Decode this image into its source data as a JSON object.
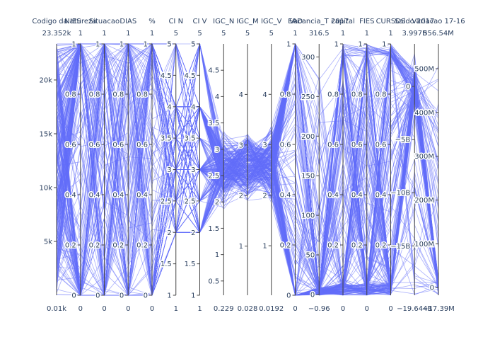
{
  "chart_data": {
    "type": "parallel_coordinates",
    "line_color": "#636efa",
    "axis_color": "#444444",
    "text_color": "#2a3f5f",
    "dimensions": [
      {
        "label": "Codigo da IES",
        "range": [
          0.01,
          23352
        ],
        "range_labels": [
          "0.01k",
          "23.352k"
        ],
        "ticks": [
          {
            "v": 5000,
            "t": "5k"
          },
          {
            "v": 10000,
            "t": "10k"
          },
          {
            "v": 15000,
            "t": "15k"
          },
          {
            "v": 20000,
            "t": "20k"
          }
        ]
      },
      {
        "label": "Natureza",
        "range": [
          0,
          1
        ],
        "range_labels": [
          "0",
          "1"
        ],
        "ticks": [
          {
            "v": 0,
            "t": "0"
          },
          {
            "v": 0.2,
            "t": "0.2"
          },
          {
            "v": 0.4,
            "t": "0.4"
          },
          {
            "v": 0.6,
            "t": "0.6"
          },
          {
            "v": 0.8,
            "t": "0.8"
          },
          {
            "v": 1,
            "t": "1"
          }
        ]
      },
      {
        "label": "Situacao",
        "range": [
          0,
          1
        ],
        "range_labels": [
          "0",
          "1"
        ],
        "ticks": [
          {
            "v": 0,
            "t": "0"
          },
          {
            "v": 0.2,
            "t": "0.2"
          },
          {
            "v": 0.4,
            "t": "0.4"
          },
          {
            "v": 0.6,
            "t": "0.6"
          },
          {
            "v": 0.8,
            "t": "0.8"
          },
          {
            "v": 1,
            "t": "1"
          }
        ]
      },
      {
        "label": "DIAS",
        "range": [
          0,
          1
        ],
        "range_labels": [
          "0",
          "1"
        ],
        "ticks": [
          {
            "v": 0,
            "t": "0"
          },
          {
            "v": 0.2,
            "t": "0.2"
          },
          {
            "v": 0.4,
            "t": "0.4"
          },
          {
            "v": 0.6,
            "t": "0.6"
          },
          {
            "v": 0.8,
            "t": "0.8"
          },
          {
            "v": 1,
            "t": "1"
          }
        ]
      },
      {
        "label": "%",
        "range": [
          0,
          1
        ],
        "range_labels": [
          "0",
          "1"
        ],
        "ticks": [
          {
            "v": 0,
            "t": "0"
          },
          {
            "v": 0.2,
            "t": "0.2"
          },
          {
            "v": 0.4,
            "t": "0.4"
          },
          {
            "v": 0.6,
            "t": "0.6"
          },
          {
            "v": 0.8,
            "t": "0.8"
          },
          {
            "v": 1,
            "t": "1"
          }
        ]
      },
      {
        "label": "CI N",
        "range": [
          1,
          5
        ],
        "range_labels": [
          "1",
          "5"
        ],
        "ticks": [
          {
            "v": 1,
            "t": "1"
          },
          {
            "v": 1.5,
            "t": "1.5"
          },
          {
            "v": 2,
            "t": "2"
          },
          {
            "v": 2.5,
            "t": "2.5"
          },
          {
            "v": 3,
            "t": "3"
          },
          {
            "v": 3.5,
            "t": "3.5"
          },
          {
            "v": 4,
            "t": "4"
          },
          {
            "v": 4.5,
            "t": "4.5"
          },
          {
            "v": 5,
            "t": "5"
          }
        ]
      },
      {
        "label": "CI V",
        "range": [
          1,
          5
        ],
        "range_labels": [
          "1",
          "5"
        ],
        "ticks": [
          {
            "v": 1,
            "t": "1"
          },
          {
            "v": 1.5,
            "t": "1.5"
          },
          {
            "v": 2,
            "t": "2"
          },
          {
            "v": 2.5,
            "t": "2.5"
          },
          {
            "v": 3,
            "t": "3"
          },
          {
            "v": 3.5,
            "t": "3.5"
          },
          {
            "v": 4,
            "t": "4"
          },
          {
            "v": 4.5,
            "t": "4.5"
          },
          {
            "v": 5,
            "t": "5"
          }
        ]
      },
      {
        "label": "IGC_N",
        "range": [
          0.229,
          5
        ],
        "range_labels": [
          "0.229",
          "5"
        ],
        "ticks": [
          {
            "v": 0.5,
            "t": "0.5"
          },
          {
            "v": 1,
            "t": "1"
          },
          {
            "v": 1.5,
            "t": "1.5"
          },
          {
            "v": 2,
            "t": "2"
          },
          {
            "v": 2.5,
            "t": "2.5"
          },
          {
            "v": 3,
            "t": "3"
          },
          {
            "v": 3.5,
            "t": "3.5"
          },
          {
            "v": 4,
            "t": "4"
          },
          {
            "v": 4.5,
            "t": "4.5"
          }
        ]
      },
      {
        "label": "IGC_M",
        "range": [
          0.028,
          5
        ],
        "range_labels": [
          "0.028",
          "5"
        ],
        "ticks": [
          {
            "v": 1,
            "t": "1"
          },
          {
            "v": 2,
            "t": "2"
          },
          {
            "v": 3,
            "t": "3"
          },
          {
            "v": 4,
            "t": "4"
          }
        ]
      },
      {
        "label": "IGC_V",
        "range": [
          0.0192,
          5
        ],
        "range_labels": [
          "0.0192",
          "5"
        ],
        "ticks": [
          {
            "v": 1,
            "t": "1"
          },
          {
            "v": 2,
            "t": "2"
          },
          {
            "v": 3,
            "t": "3"
          },
          {
            "v": 4,
            "t": "4"
          }
        ]
      },
      {
        "label": "EAD",
        "range": [
          0,
          1
        ],
        "range_labels": [
          "0",
          "1"
        ],
        "ticks": [
          {
            "v": 0,
            "t": "0"
          },
          {
            "v": 0.2,
            "t": "0.2"
          },
          {
            "v": 0.4,
            "t": "0.4"
          },
          {
            "v": 0.6,
            "t": "0.6"
          },
          {
            "v": 0.8,
            "t": "0.8"
          },
          {
            "v": 1,
            "t": "1"
          }
        ]
      },
      {
        "label": "Vacancia_T 2017",
        "range": [
          -0.96,
          316.5
        ],
        "range_labels": [
          "−0.96",
          "316.5"
        ],
        "ticks": [
          {
            "v": 0,
            "t": "0"
          },
          {
            "v": 50,
            "t": "50"
          },
          {
            "v": 100,
            "t": "100"
          },
          {
            "v": 150,
            "t": "150"
          },
          {
            "v": 200,
            "t": "200"
          },
          {
            "v": 250,
            "t": "250"
          },
          {
            "v": 300,
            "t": "300"
          }
        ]
      },
      {
        "label": "capital",
        "range": [
          0,
          1
        ],
        "range_labels": [
          "0",
          "1"
        ],
        "ticks": [
          {
            "v": 0.2,
            "t": "0.2"
          },
          {
            "v": 0.4,
            "t": "0.4"
          },
          {
            "v": 0.6,
            "t": "0.6"
          },
          {
            "v": 0.8,
            "t": "0.8"
          },
          {
            "v": 1,
            "t": "1"
          }
        ]
      },
      {
        "label": "FIES",
        "range": [
          0,
          1
        ],
        "range_labels": [
          "0",
          "1"
        ],
        "ticks": [
          {
            "v": 0.2,
            "t": "0.2"
          },
          {
            "v": 0.4,
            "t": "0.4"
          },
          {
            "v": 0.6,
            "t": "0.6"
          },
          {
            "v": 0.8,
            "t": "0.8"
          },
          {
            "v": 1,
            "t": "1"
          }
        ]
      },
      {
        "label": "CURSOS",
        "range": [
          0,
          1
        ],
        "range_labels": [
          "0",
          "1"
        ],
        "ticks": [
          {
            "v": 0.2,
            "t": "0.2"
          },
          {
            "v": 0.4,
            "t": "0.4"
          },
          {
            "v": 0.6,
            "t": "0.6"
          },
          {
            "v": 0.8,
            "t": "0.8"
          },
          {
            "v": 1,
            "t": "1"
          }
        ]
      },
      {
        "label": "Saldo 2017",
        "range": [
          -19644000000,
          3997000000
        ],
        "range_labels": [
          "−19.644B",
          "3.997B"
        ],
        "ticks": [
          {
            "v": -15000000000,
            "t": "−15B"
          },
          {
            "v": -10000000000,
            "t": "−10B"
          },
          {
            "v": -5000000000,
            "t": "−5B"
          },
          {
            "v": 0,
            "t": "0"
          }
        ]
      },
      {
        "label": "Variacao 17-16",
        "range": [
          -17390000,
          556540000
        ],
        "range_labels": [
          "−17.39M",
          "556.54M"
        ],
        "ticks": [
          {
            "v": 0,
            "t": "0"
          },
          {
            "v": 100000000,
            "t": "100M"
          },
          {
            "v": 200000000,
            "t": "200M"
          },
          {
            "v": 300000000,
            "t": "300M"
          },
          {
            "v": 400000000,
            "t": "400M"
          },
          {
            "v": 500000000,
            "t": "500M"
          }
        ]
      }
    ]
  }
}
